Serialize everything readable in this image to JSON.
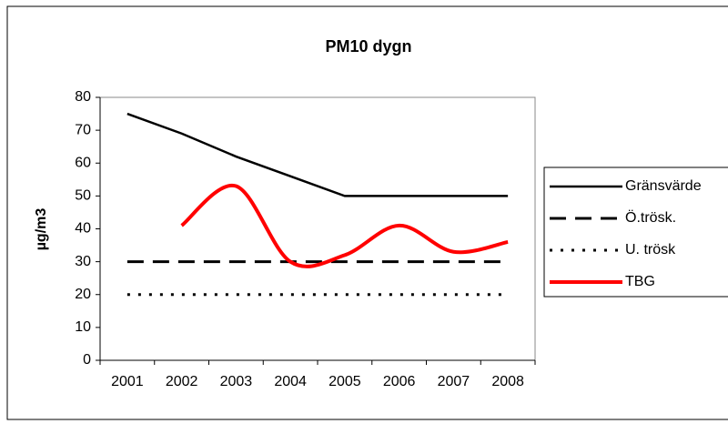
{
  "chart_data": {
    "type": "line",
    "title": "PM10 dygn",
    "y_label": "µg/m3",
    "categories": [
      "2001",
      "2002",
      "2003",
      "2004",
      "2005",
      "2006",
      "2007",
      "2008"
    ],
    "series": [
      {
        "name": "Gränsvärde",
        "color": "#000000",
        "dash": "solid",
        "values": [
          75,
          69,
          62,
          56,
          50,
          50,
          50,
          50
        ]
      },
      {
        "name": "Ö.trösk.",
        "color": "#000000",
        "dash": "dashed",
        "values": [
          30,
          30,
          30,
          30,
          30,
          30,
          30,
          30
        ]
      },
      {
        "name": "U. trösk",
        "color": "#000000",
        "dash": "dotted",
        "values": [
          20,
          20,
          20,
          20,
          20,
          20,
          20,
          20
        ]
      },
      {
        "name": "TBG",
        "color": "#ff0000",
        "dash": "solid",
        "smooth": true,
        "values": [
          null,
          41,
          53,
          30,
          32,
          41,
          33,
          36
        ]
      }
    ],
    "ylim": [
      0,
      80
    ],
    "yticks": [
      0,
      10,
      20,
      30,
      40,
      50,
      60,
      70,
      80
    ],
    "legend": "right"
  }
}
